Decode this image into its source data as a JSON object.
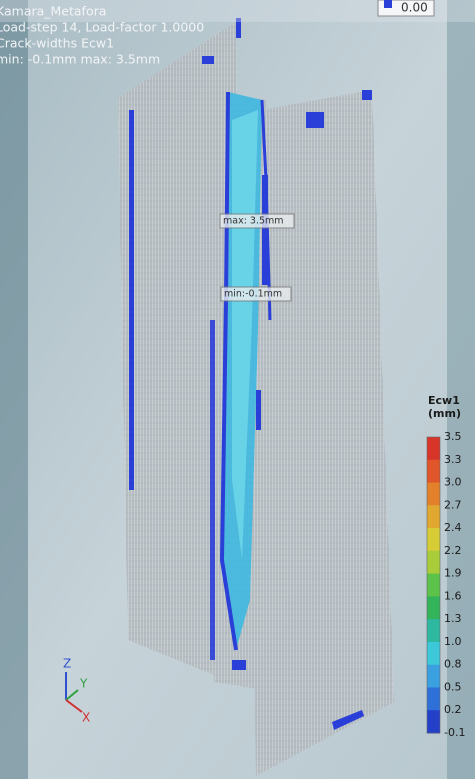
{
  "header": {
    "lines": [
      "Kamara_Metafora",
      "Load-step 14, Load-factor 1.0000",
      "Crack-widths Ecw1",
      "min: -0.1mm max:  3.5mm"
    ]
  },
  "top_right_value": "0.00",
  "annotations": {
    "max": "max: 3.5mm",
    "min": "min:-0.1mm"
  },
  "legend": {
    "title": "Ecw1",
    "unit": "(mm)",
    "labels": [
      "3.5",
      "3.3",
      "3.0",
      "2.7",
      "2.4",
      "2.2",
      "1.9",
      "1.6",
      "1.3",
      "1.0",
      "0.8",
      "0.5",
      "0.2",
      "-0.1"
    ],
    "colors": [
      "#d8352a",
      "#e0562a",
      "#e2802c",
      "#e0a830",
      "#d6cc36",
      "#a8cc3a",
      "#5cc24a",
      "#34b45a",
      "#2eb8a0",
      "#3cc8d8",
      "#3aa0e0",
      "#2f70d8",
      "#2440c8"
    ]
  },
  "axes": {
    "z": "Z",
    "y": "Y",
    "x": "X"
  }
}
